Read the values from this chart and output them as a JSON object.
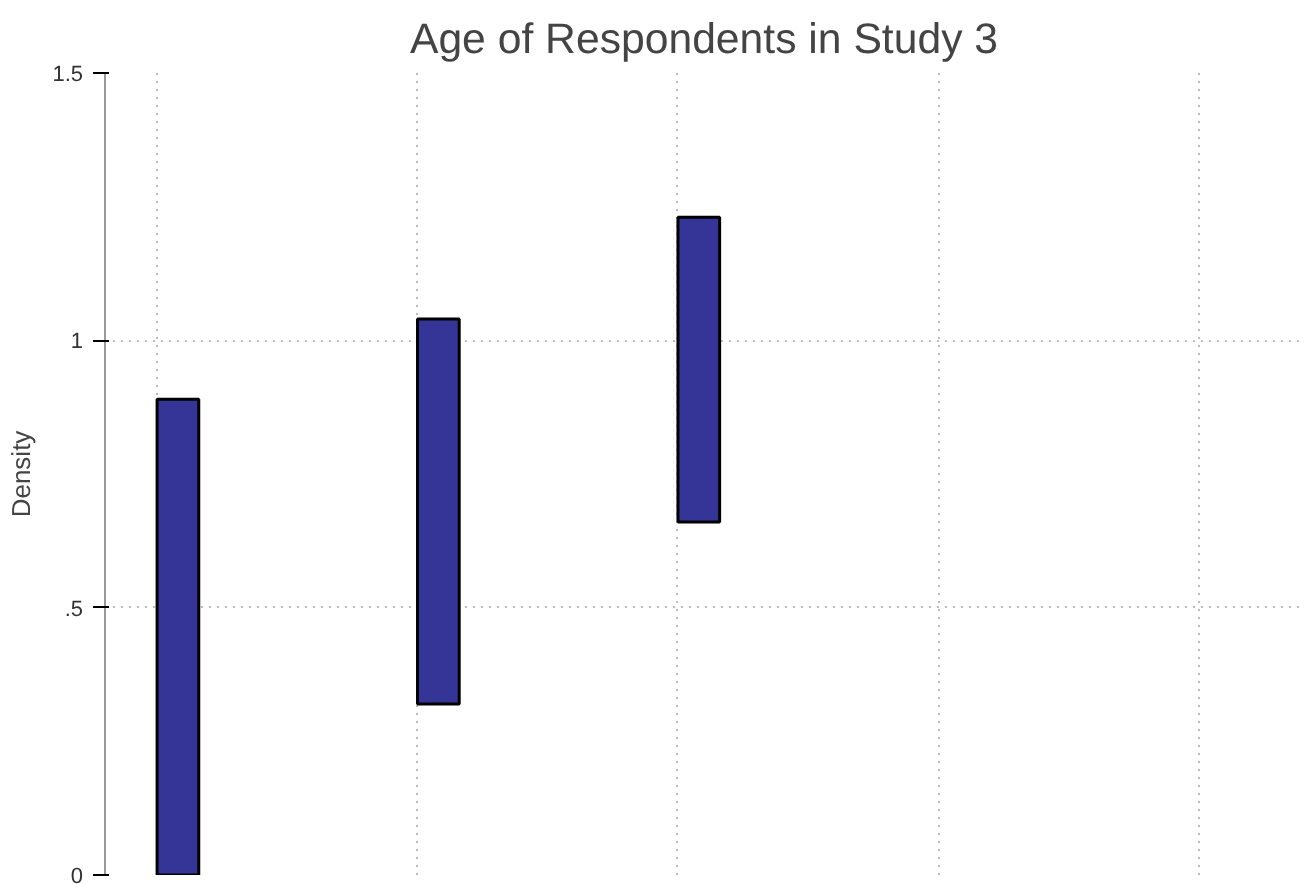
{
  "chart_data": {
    "type": "bar",
    "title": "Age of Respondents in Study 3",
    "ylabel": "Density",
    "categories": [
      null,
      null,
      null,
      null,
      null
    ],
    "values": [
      0.89,
      0.72,
      0.57,
      null,
      null
    ],
    "base": [
      0,
      0.32,
      0.66,
      null,
      null
    ],
    "color": "#353597",
    "ylim": [
      0,
      1.5
    ],
    "yticks": [
      0,
      {
        "value": 0.5,
        "label": ".5"
      },
      1,
      1.5
    ],
    "grid": true,
    "tick_labels": "y"
  }
}
